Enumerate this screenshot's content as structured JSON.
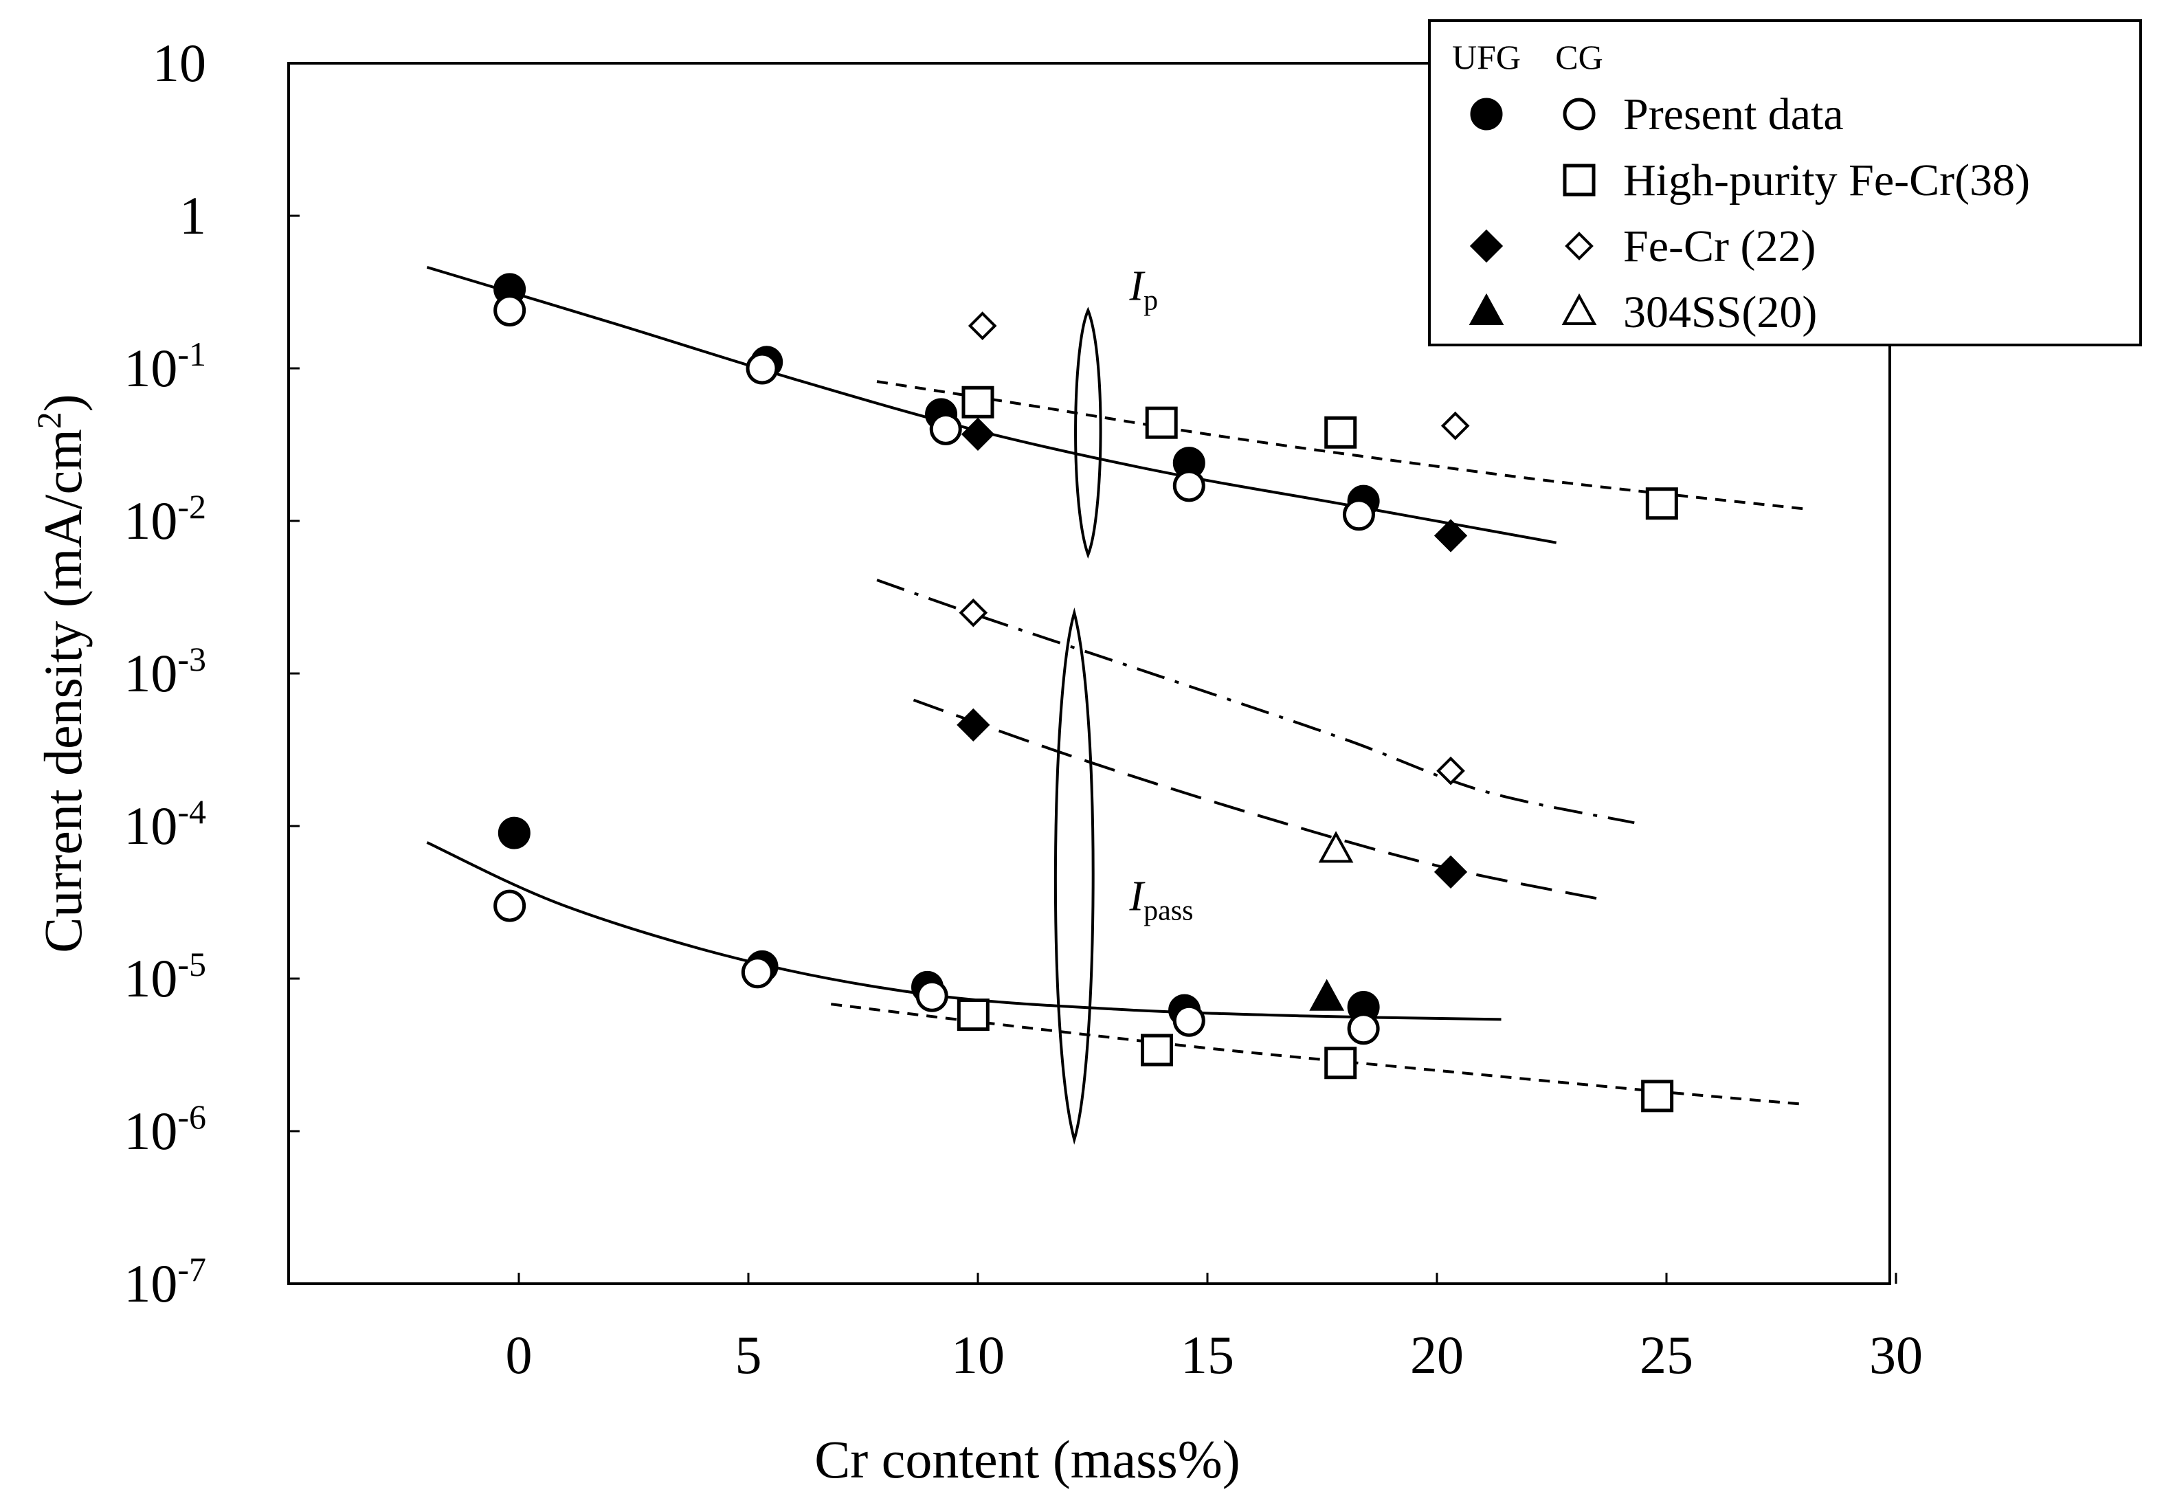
{
  "chart_data": {
    "type": "scatter",
    "xlabel": "Cr content (mass%)",
    "ylabel": {
      "prefix": "Current density  (mA/cm",
      "sup": "2",
      "suffix": ")"
    },
    "xlim": [
      -5,
      30
    ],
    "ylim_log10": [
      -7,
      1
    ],
    "x_ticks": [
      {
        "value": 0,
        "label": "0"
      },
      {
        "value": 5,
        "label": "5"
      },
      {
        "value": 10,
        "label": "10"
      },
      {
        "value": 15,
        "label": "15"
      },
      {
        "value": 20,
        "label": "20"
      },
      {
        "value": 25,
        "label": "25"
      },
      {
        "value": 30,
        "label": "30"
      }
    ],
    "y_ticks": [
      {
        "exp": 1,
        "base": "10",
        "sup": ""
      },
      {
        "exp": 0,
        "base": "1",
        "sup": ""
      },
      {
        "exp": -1,
        "base": "10",
        "sup": "-1"
      },
      {
        "exp": -2,
        "base": "10",
        "sup": "-2"
      },
      {
        "exp": -3,
        "base": "10",
        "sup": "-3"
      },
      {
        "exp": -4,
        "base": "10",
        "sup": "-4"
      },
      {
        "exp": -5,
        "base": "10",
        "sup": "-5"
      },
      {
        "exp": -6,
        "base": "10",
        "sup": "-6"
      },
      {
        "exp": -7,
        "base": "10",
        "sup": "-7"
      }
    ],
    "legend": {
      "position": "top-right",
      "header_ufg": "UFG",
      "header_cg": "CG",
      "entries": [
        {
          "label": "Present data",
          "ufg": "circle-filled",
          "cg": "circle-open"
        },
        {
          "label": "High-purity Fe-Cr(38)",
          "ufg": "",
          "cg": "square-open"
        },
        {
          "label": "Fe-Cr (22)",
          "ufg": "diamond-filled",
          "cg": "diamond-open"
        },
        {
          "label": "304SS(20)",
          "ufg": "triangle-filled",
          "cg": "triangle-open"
        }
      ]
    },
    "annotations": [
      {
        "name": "ip-label",
        "text": "I",
        "sub": "p",
        "x": 13.3,
        "y": 0.28
      },
      {
        "name": "ipass-label",
        "text": "I",
        "sub": "pass",
        "x": 13.3,
        "y": 2.8e-05
      }
    ],
    "series": [
      {
        "name": "Present data UFG (Ip)",
        "marker": "circle-filled",
        "points": [
          [
            -0.2,
            0.33
          ],
          [
            5.4,
            0.11
          ],
          [
            9.2,
            0.05
          ],
          [
            14.6,
            0.024
          ],
          [
            18.4,
            0.0135
          ]
        ]
      },
      {
        "name": "Present data CG (Ip)",
        "marker": "circle-open",
        "points": [
          [
            -0.2,
            0.24
          ],
          [
            5.3,
            0.1
          ],
          [
            9.3,
            0.04
          ],
          [
            14.6,
            0.017
          ],
          [
            18.3,
            0.011
          ]
        ]
      },
      {
        "name": "High-purity Fe-Cr(38) (Ip)",
        "marker": "square-open",
        "points": [
          [
            10.0,
            0.06
          ],
          [
            14.0,
            0.044
          ],
          [
            17.9,
            0.038
          ],
          [
            24.9,
            0.013
          ]
        ]
      },
      {
        "name": "Fe-Cr (22) solid (Ip)",
        "marker": "diamond-filled",
        "points": [
          [
            10.0,
            0.037
          ],
          [
            20.3,
            0.008
          ]
        ]
      },
      {
        "name": "Fe-Cr (22) open (Ip)",
        "marker": "diamond-open",
        "points": [
          [
            10.1,
            0.19
          ],
          [
            20.4,
            0.042
          ]
        ]
      },
      {
        "name": "Fe-Cr (22) open (Ipass)",
        "marker": "diamond-open",
        "points": [
          [
            9.9,
            0.0025
          ],
          [
            20.3,
            0.00023
          ]
        ]
      },
      {
        "name": "Fe-Cr (22) solid (Ipass)",
        "marker": "diamond-filled",
        "points": [
          [
            9.9,
            0.00046
          ],
          [
            20.3,
            5e-05
          ]
        ]
      },
      {
        "name": "304SS(20) open (Ipass)",
        "marker": "triangle-open",
        "points": [
          [
            17.8,
            7e-05
          ]
        ]
      },
      {
        "name": "304SS(20) solid (Ipass)",
        "marker": "triangle-filled",
        "points": [
          [
            17.6,
            7.5e-06
          ]
        ]
      },
      {
        "name": "Present data UFG (Ipass)",
        "marker": "circle-filled",
        "points": [
          [
            -0.1,
            9e-05
          ],
          [
            5.3,
            1.2e-05
          ],
          [
            8.9,
            8.8e-06
          ],
          [
            14.5,
            6.2e-06
          ],
          [
            18.4,
            6.5e-06
          ]
        ]
      },
      {
        "name": "Present data CG (Ipass)",
        "marker": "circle-open",
        "points": [
          [
            -0.2,
            3e-05
          ],
          [
            5.2,
            1.1e-05
          ],
          [
            9.0,
            7.7e-06
          ],
          [
            14.6,
            5.3e-06
          ],
          [
            18.4,
            4.7e-06
          ]
        ]
      },
      {
        "name": "High-purity Fe-Cr(38) (Ipass)",
        "marker": "square-open",
        "points": [
          [
            9.9,
            5.8e-06
          ],
          [
            13.9,
            3.4e-06
          ],
          [
            17.9,
            2.8e-06
          ],
          [
            24.8,
            1.7e-06
          ]
        ]
      }
    ],
    "fit_lines": [
      {
        "name": "fit-ip-present",
        "style": "solid",
        "points": [
          [
            -2,
            0.46
          ],
          [
            2,
            0.2
          ],
          [
            6,
            0.085
          ],
          [
            10,
            0.039
          ],
          [
            14,
            0.021
          ],
          [
            18,
            0.0128
          ],
          [
            22.6,
            0.0072
          ]
        ]
      },
      {
        "name": "fit-ip-highpurity",
        "style": "short-dash",
        "points": [
          [
            7.8,
            0.082
          ],
          [
            11,
            0.058
          ],
          [
            15,
            0.037
          ],
          [
            19,
            0.025
          ],
          [
            23,
            0.0175
          ],
          [
            28,
            0.012
          ]
        ]
      },
      {
        "name": "fit-ipass-fecr-open",
        "style": "dash-dot",
        "points": [
          [
            7.8,
            0.0041
          ],
          [
            10,
            0.0024
          ],
          [
            14,
            0.00095
          ],
          [
            18,
            0.00037
          ],
          [
            21,
            0.00017
          ],
          [
            24.3,
            0.000105
          ]
        ]
      },
      {
        "name": "fit-ipass-fecr-solid",
        "style": "long-dash",
        "points": [
          [
            8.6,
            0.00067
          ],
          [
            12,
            0.00029
          ],
          [
            16,
            0.00012
          ],
          [
            20,
            5.5e-05
          ],
          [
            23.6,
            3.3e-05
          ]
        ]
      },
      {
        "name": "fit-ipass-present",
        "style": "solid",
        "points": [
          [
            -2,
            7.8e-05
          ],
          [
            1,
            3e-05
          ],
          [
            5,
            1.3e-05
          ],
          [
            9,
            7.8e-06
          ],
          [
            13,
            6.3e-06
          ],
          [
            17,
            5.7e-06
          ],
          [
            21.4,
            5.4e-06
          ]
        ]
      },
      {
        "name": "fit-ipass-highpurity",
        "style": "short-dash",
        "points": [
          [
            6.8,
            6.8e-06
          ],
          [
            10,
            5.2e-06
          ],
          [
            15,
            3.5e-06
          ],
          [
            20,
            2.5e-06
          ],
          [
            25,
            1.8e-06
          ],
          [
            28,
            1.5e-06
          ]
        ]
      }
    ],
    "grouping_ellipses": [
      {
        "name": "ip-group-ellipse",
        "cx": 12.4,
        "cy": 0.042,
        "y_top": 0.24,
        "y_bottom": 0.006,
        "half_width": 0.28
      },
      {
        "name": "ipass-group-ellipse",
        "cx": 12.1,
        "cy": 4.4e-05,
        "y_top": 0.0025,
        "y_bottom": 8.8e-07,
        "half_width": 0.42
      }
    ]
  }
}
